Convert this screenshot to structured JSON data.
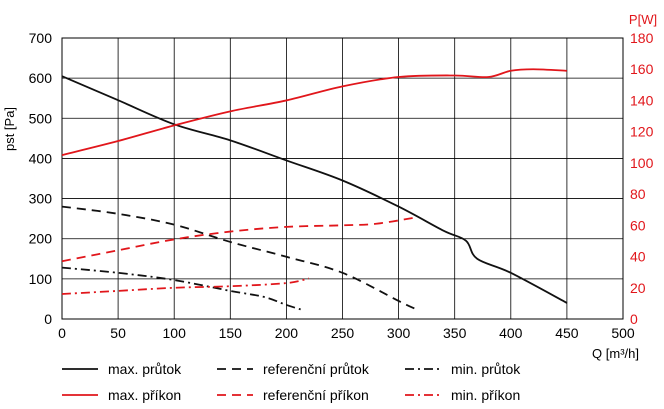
{
  "chart_data": {
    "type": "line",
    "y_left_label": "pst [Pa]",
    "y_right_label": "P[W]",
    "x_label": "Q [m³/h]",
    "xlim": [
      0,
      500
    ],
    "ylim_left": [
      0,
      700
    ],
    "ylim_right": [
      0,
      180
    ],
    "x_ticks": [
      "0",
      "50",
      "100",
      "150",
      "200",
      "250",
      "300",
      "350",
      "400",
      "450",
      "500"
    ],
    "y_left_ticks": [
      "0",
      "100",
      "200",
      "300",
      "400",
      "500",
      "600",
      "700"
    ],
    "y_right_ticks": [
      "0",
      "20",
      "40",
      "60",
      "80",
      "100",
      "120",
      "140",
      "160",
      "180"
    ],
    "grid": true,
    "colors": {
      "pressure": "#111111",
      "power": "#e1161b"
    },
    "series": [
      {
        "name": "max. průtok",
        "axis": "left",
        "color": "#111111",
        "style": "solid",
        "x": [
          0,
          50,
          100,
          150,
          200,
          250,
          300,
          340,
          360,
          370,
          400,
          450
        ],
        "y": [
          605,
          545,
          485,
          445,
          395,
          345,
          280,
          220,
          195,
          150,
          115,
          40
        ]
      },
      {
        "name": "referenční průtok",
        "axis": "left",
        "color": "#111111",
        "style": "dashed",
        "x": [
          0,
          50,
          100,
          150,
          200,
          250,
          300,
          315
        ],
        "y": [
          280,
          262,
          235,
          192,
          155,
          115,
          45,
          25
        ]
      },
      {
        "name": "min. průtok",
        "axis": "left",
        "color": "#111111",
        "style": "dashdot",
        "x": [
          0,
          50,
          100,
          150,
          180,
          200,
          215
        ],
        "y": [
          128,
          115,
          97,
          70,
          55,
          35,
          22
        ]
      },
      {
        "name": "max. příkon",
        "axis": "right",
        "color": "#e1161b",
        "style": "solid",
        "x": [
          0,
          50,
          100,
          150,
          200,
          250,
          300,
          350,
          380,
          400,
          420,
          450
        ],
        "y": [
          105,
          114,
          124,
          133,
          140,
          149,
          155,
          156,
          155,
          159,
          160,
          159
        ]
      },
      {
        "name": "referenční příkon",
        "axis": "right",
        "color": "#e1161b",
        "style": "dashed",
        "x": [
          0,
          50,
          100,
          150,
          200,
          250,
          280,
          315
        ],
        "y": [
          37,
          44,
          51,
          56,
          59,
          60,
          61,
          65
        ]
      },
      {
        "name": "min. příkon",
        "axis": "right",
        "color": "#e1161b",
        "style": "dashdot",
        "x": [
          0,
          50,
          100,
          150,
          200,
          220
        ],
        "y": [
          16,
          18,
          20,
          21,
          23,
          26
        ]
      }
    ],
    "legend_position": "bottom",
    "legend": [
      [
        "max. průtok",
        "referenční průtok",
        "min. průtok"
      ],
      [
        "max. příkon",
        "referenční příkon",
        "min. příkon"
      ]
    ]
  }
}
